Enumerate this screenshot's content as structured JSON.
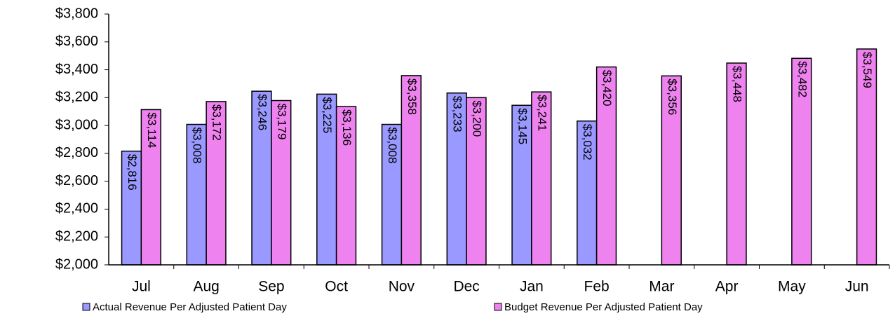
{
  "chart_data": {
    "type": "bar",
    "categories": [
      "Jul",
      "Aug",
      "Sep",
      "Oct",
      "Nov",
      "Dec",
      "Jan",
      "Feb",
      "Mar",
      "Apr",
      "May",
      "Jun"
    ],
    "series": [
      {
        "name": "Actual Revenue Per Adjusted Patient Day",
        "color": "#9999ff",
        "values": [
          2816,
          3008,
          3246,
          3225,
          3008,
          3233,
          3145,
          3032,
          null,
          null,
          null,
          null
        ],
        "value_labels": [
          "$2,816",
          "$3,008",
          "$3,246",
          "$3,225",
          "$3,008",
          "$3,233",
          "$3,145",
          "$3,032",
          null,
          null,
          null,
          null
        ]
      },
      {
        "name": "Budget Revenue Per Adjusted Patient Day",
        "color": "#ee82ee",
        "values": [
          3114,
          3172,
          3179,
          3136,
          3358,
          3200,
          3241,
          3420,
          3356,
          3448,
          3482,
          3549
        ],
        "value_labels": [
          "$3,114",
          "$3,172",
          "$3,179",
          "$3,136",
          "$3,358",
          "$3,200",
          "$3,241",
          "$3,420",
          "$3,356",
          "$3,448",
          "$3,482",
          "$3,549"
        ]
      }
    ],
    "ylim": [
      2000,
      3800
    ],
    "yticks": [
      {
        "value": 2000,
        "label": "$2,000"
      },
      {
        "value": 2200,
        "label": "$2,200"
      },
      {
        "value": 2400,
        "label": "$2,400"
      },
      {
        "value": 2600,
        "label": "$2,600"
      },
      {
        "value": 2800,
        "label": "$2,800"
      },
      {
        "value": 3000,
        "label": "$3,000"
      },
      {
        "value": 3200,
        "label": "$3,200"
      },
      {
        "value": 3400,
        "label": "$3,400"
      },
      {
        "value": 3600,
        "label": "$3,600"
      },
      {
        "value": 3800,
        "label": "$3,800"
      }
    ],
    "grid": false,
    "legend": "bottom"
  }
}
